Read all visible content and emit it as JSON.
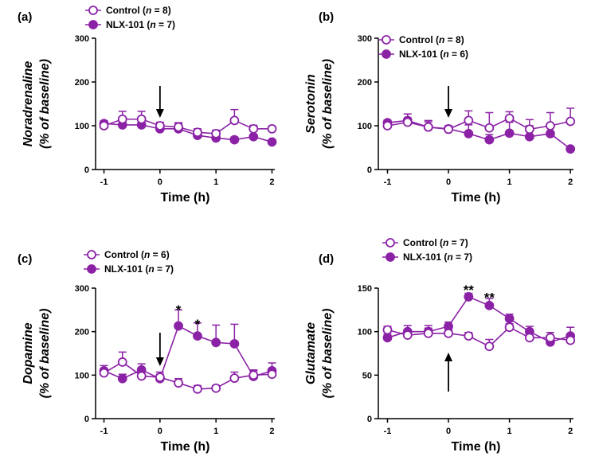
{
  "colors": {
    "series": "#8B22A6",
    "axis": "#000000",
    "fill": "#ffffff"
  },
  "chart_data": [
    {
      "panel_label": "(a)",
      "type": "line",
      "ylabel_line1": "Noradrenaline",
      "ylabel_line2": "(% of baseline)",
      "xlabel": "Time (h)",
      "xlim": [
        -1.15,
        2.05
      ],
      "ylim": [
        0,
        300
      ],
      "xticks": [
        -1,
        0,
        1,
        2
      ],
      "xtick_labels": [
        "-1",
        "0",
        "1",
        "2"
      ],
      "yticks": [
        0,
        100,
        200,
        300
      ],
      "ytick_labels": [
        "0",
        "100",
        "200",
        "300"
      ],
      "legend": [
        {
          "name": "Control",
          "n_text": "8"
        },
        {
          "name": "NLX-101",
          "n_text": "7"
        }
      ],
      "arrow": {
        "x": 0,
        "direction": "down"
      },
      "series": [
        {
          "name": "Control",
          "marker": "open",
          "x": [
            -1,
            -0.67,
            -0.33,
            0,
            0.33,
            0.67,
            1,
            1.33,
            1.67,
            2
          ],
          "y": [
            100,
            115,
            115,
            100,
            97,
            85,
            82,
            112,
            93,
            93
          ],
          "err": [
            8,
            18,
            18,
            8,
            8,
            8,
            8,
            25,
            8,
            6
          ]
        },
        {
          "name": "NLX-101",
          "marker": "filled",
          "x": [
            -1,
            -0.67,
            -0.33,
            0,
            0.33,
            0.67,
            1,
            1.33,
            1.67,
            2
          ],
          "y": [
            105,
            102,
            102,
            93,
            93,
            78,
            72,
            68,
            75,
            63
          ],
          "err": [
            6,
            10,
            10,
            8,
            14,
            8,
            8,
            6,
            15,
            4
          ]
        }
      ],
      "annotations": []
    },
    {
      "panel_label": "(b)",
      "type": "line",
      "ylabel_line1": "Serotonin",
      "ylabel_line2": "(% of baseline)",
      "xlabel": "Time (h)",
      "xlim": [
        -1.15,
        2.05
      ],
      "ylim": [
        0,
        300
      ],
      "xticks": [
        -1,
        0,
        1,
        2
      ],
      "xtick_labels": [
        "-1",
        "0",
        "1",
        "2"
      ],
      "yticks": [
        0,
        100,
        200,
        300
      ],
      "ytick_labels": [
        "0",
        "100",
        "200",
        "300"
      ],
      "legend": [
        {
          "name": "Control",
          "n_text": "8"
        },
        {
          "name": "NLX-101",
          "n_text": "6"
        }
      ],
      "arrow": {
        "x": 0,
        "direction": "down"
      },
      "series": [
        {
          "name": "Control",
          "marker": "open",
          "x": [
            -1,
            -0.67,
            -0.33,
            0,
            0.33,
            0.67,
            1,
            1.33,
            1.67,
            2
          ],
          "y": [
            100,
            108,
            97,
            92,
            112,
            95,
            117,
            92,
            100,
            110
          ],
          "err": [
            8,
            10,
            12,
            8,
            22,
            35,
            15,
            22,
            30,
            30
          ]
        },
        {
          "name": "NLX-101",
          "marker": "filled",
          "x": [
            -1,
            -0.67,
            -0.33,
            0,
            0.33,
            0.67,
            1,
            1.33,
            1.67,
            2
          ],
          "y": [
            107,
            112,
            97,
            93,
            82,
            68,
            83,
            75,
            82,
            47
          ],
          "err": [
            6,
            15,
            15,
            6,
            20,
            12,
            25,
            25,
            18,
            4
          ]
        }
      ],
      "annotations": []
    },
    {
      "panel_label": "(c)",
      "type": "line",
      "ylabel_line1": "Dopamine",
      "ylabel_line2": "(% of baseline)",
      "xlabel": "Time (h)",
      "xlim": [
        -1.15,
        2.05
      ],
      "ylim": [
        0,
        300
      ],
      "xticks": [
        -1,
        0,
        1,
        2
      ],
      "xtick_labels": [
        "-1",
        "0",
        "1",
        "2"
      ],
      "yticks": [
        0,
        100,
        200,
        300
      ],
      "ytick_labels": [
        "0",
        "100",
        "200",
        "300"
      ],
      "legend": [
        {
          "name": "Control",
          "n_text": "6"
        },
        {
          "name": "NLX-101",
          "n_text": "7"
        }
      ],
      "arrow": {
        "x": 0,
        "direction": "down"
      },
      "series": [
        {
          "name": "Control",
          "marker": "open",
          "x": [
            -1,
            -0.67,
            -0.33,
            0,
            0.33,
            0.67,
            1,
            1.33,
            1.67,
            2
          ],
          "y": [
            105,
            130,
            98,
            95,
            82,
            68,
            70,
            93,
            100,
            102
          ],
          "err": [
            10,
            23,
            10,
            12,
            10,
            8,
            6,
            14,
            10,
            12
          ]
        },
        {
          "name": "NLX-101",
          "marker": "filled",
          "x": [
            -1,
            -0.67,
            -0.33,
            0,
            0.33,
            0.67,
            1,
            1.33,
            1.67,
            2
          ],
          "y": [
            110,
            92,
            112,
            92,
            213,
            190,
            175,
            172,
            97,
            110
          ],
          "err": [
            12,
            10,
            14,
            10,
            37,
            30,
            40,
            45,
            15,
            18
          ]
        }
      ],
      "annotations": [
        {
          "x": 0.33,
          "y": 258,
          "text": "*"
        },
        {
          "x": 0.67,
          "y": 225,
          "text": "*"
        }
      ]
    },
    {
      "panel_label": "(d)",
      "type": "line",
      "ylabel_line1": "Glutamate",
      "ylabel_line2": "(% of baseline)",
      "xlabel": "Time (h)",
      "xlim": [
        -1.15,
        2.05
      ],
      "ylim": [
        0,
        150
      ],
      "xticks": [
        -1,
        0,
        1,
        2
      ],
      "xtick_labels": [
        "-1",
        "0",
        "1",
        "2"
      ],
      "yticks": [
        0,
        50,
        100,
        150
      ],
      "ytick_labels": [
        "0",
        "50",
        "100",
        "150"
      ],
      "legend": [
        {
          "name": "Control",
          "n_text": "7"
        },
        {
          "name": "NLX-101",
          "n_text": "7"
        }
      ],
      "arrow": {
        "x": 0,
        "direction": "up"
      },
      "series": [
        {
          "name": "Control",
          "marker": "open",
          "x": [
            -1,
            -0.67,
            -0.33,
            0,
            0.33,
            0.67,
            1,
            1.33,
            1.67,
            2
          ],
          "y": [
            102,
            96,
            98,
            98,
            95,
            83,
            105,
            93,
            93,
            90
          ],
          "err": [
            4,
            5,
            6,
            4,
            4,
            8,
            4,
            6,
            6,
            4
          ]
        },
        {
          "name": "NLX-101",
          "marker": "filled",
          "x": [
            -1,
            -0.67,
            -0.33,
            0,
            0.33,
            0.67,
            1,
            1.33,
            1.67,
            2
          ],
          "y": [
            93,
            100,
            100,
            106,
            140,
            130,
            115,
            100,
            88,
            95
          ],
          "err": [
            4,
            7,
            7,
            5,
            4,
            8,
            5,
            6,
            6,
            10
          ]
        }
      ],
      "annotations": [
        {
          "x": 0.33,
          "y": 152,
          "text": "**"
        },
        {
          "x": 0.67,
          "y": 143,
          "text": "**"
        }
      ]
    }
  ]
}
